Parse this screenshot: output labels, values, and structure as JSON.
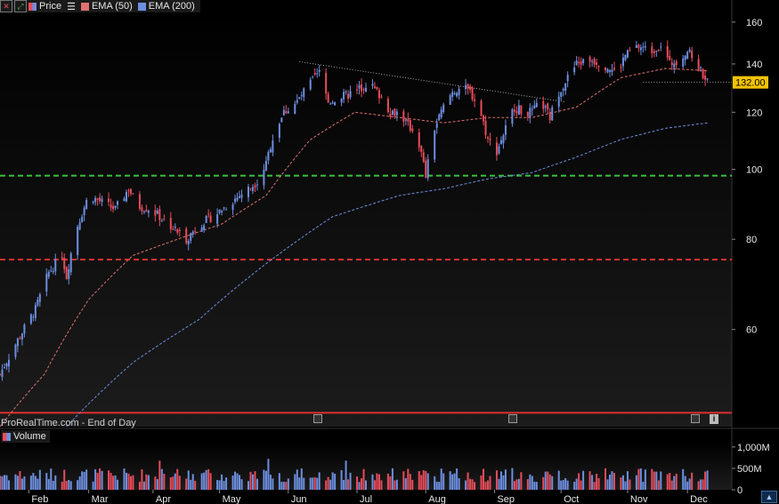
{
  "toolbar": {
    "price_label": "Price",
    "ema50_label": "EMA (50)",
    "ema200_label": "EMA (200)",
    "colors": {
      "price": "#e84c5a",
      "ema50": "#e07070",
      "ema200": "#6d8fe0"
    }
  },
  "watermark": "ProRealTime.com - End of Day",
  "volume_label": "Volume",
  "current_price_tag": "132.00",
  "chart_data": [
    {
      "type": "candlestick",
      "title": "",
      "scale": "log",
      "ylim": [
        44,
        165
      ],
      "y_ticks": [
        60,
        80,
        100,
        120,
        140,
        160
      ],
      "x_ticks": [
        "Feb",
        "Mar",
        "Apr",
        "May",
        "Jun",
        "Jul",
        "Aug",
        "Sep",
        "Oct",
        "Nov",
        "Dec"
      ],
      "x_tick_days": [
        13,
        40,
        69,
        99,
        130,
        161,
        192,
        223,
        253,
        283,
        310
      ],
      "x_range_days": [
        0,
        330
      ],
      "last_day": 319,
      "colors": {
        "up": "#6d8fe0",
        "down": "#e84c5a",
        "ema50": "#e07070",
        "ema200": "#6d8fe0"
      },
      "close_path": [
        [
          0,
          52
        ],
        [
          8,
          58
        ],
        [
          16,
          64
        ],
        [
          22,
          72
        ],
        [
          28,
          76
        ],
        [
          30,
          71
        ],
        [
          34,
          82
        ],
        [
          40,
          92
        ],
        [
          46,
          90
        ],
        [
          52,
          88
        ],
        [
          58,
          94
        ],
        [
          62,
          89
        ],
        [
          68,
          88
        ],
        [
          74,
          85
        ],
        [
          80,
          82
        ],
        [
          84,
          80
        ],
        [
          90,
          84
        ],
        [
          96,
          86
        ],
        [
          102,
          89
        ],
        [
          108,
          92
        ],
        [
          114,
          95
        ],
        [
          118,
          98
        ],
        [
          120,
          103
        ],
        [
          124,
          113
        ],
        [
          128,
          120
        ],
        [
          134,
          124
        ],
        [
          140,
          132
        ],
        [
          144,
          136
        ],
        [
          148,
          124
        ],
        [
          154,
          126
        ],
        [
          160,
          128
        ],
        [
          166,
          132
        ],
        [
          172,
          126
        ],
        [
          176,
          120
        ],
        [
          180,
          120
        ],
        [
          184,
          115
        ],
        [
          188,
          112
        ],
        [
          192,
          98
        ],
        [
          196,
          114
        ],
        [
          200,
          122
        ],
        [
          204,
          128
        ],
        [
          208,
          130
        ],
        [
          212,
          128
        ],
        [
          216,
          122
        ],
        [
          220,
          110
        ],
        [
          224,
          106
        ],
        [
          228,
          114
        ],
        [
          232,
          122
        ],
        [
          236,
          120
        ],
        [
          240,
          120
        ],
        [
          244,
          124
        ],
        [
          248,
          118
        ],
        [
          252,
          128
        ],
        [
          256,
          134
        ],
        [
          260,
          140
        ],
        [
          266,
          142
        ],
        [
          272,
          140
        ],
        [
          278,
          136
        ],
        [
          282,
          144
        ],
        [
          288,
          148
        ],
        [
          294,
          146
        ],
        [
          298,
          149
        ],
        [
          302,
          140
        ],
        [
          306,
          142
        ],
        [
          310,
          146
        ],
        [
          314,
          140
        ],
        [
          318,
          134
        ],
        [
          319,
          132
        ]
      ],
      "ema50_path": [
        [
          0,
          44
        ],
        [
          20,
          52
        ],
        [
          40,
          66
        ],
        [
          60,
          76
        ],
        [
          80,
          80
        ],
        [
          100,
          84
        ],
        [
          120,
          92
        ],
        [
          140,
          110
        ],
        [
          160,
          120
        ],
        [
          180,
          118
        ],
        [
          200,
          116
        ],
        [
          220,
          118
        ],
        [
          240,
          118
        ],
        [
          260,
          122
        ],
        [
          280,
          134
        ],
        [
          300,
          138
        ],
        [
          319,
          137
        ]
      ],
      "ema200_path": [
        [
          30,
          44
        ],
        [
          60,
          54
        ],
        [
          90,
          62
        ],
        [
          120,
          74
        ],
        [
          150,
          86
        ],
        [
          180,
          92
        ],
        [
          200,
          94
        ],
        [
          220,
          97
        ],
        [
          240,
          99
        ],
        [
          260,
          104
        ],
        [
          280,
          110
        ],
        [
          300,
          114
        ],
        [
          319,
          116
        ]
      ],
      "horizontal_levels": [
        {
          "price": 98,
          "color": "#39c23a",
          "style": "dashed"
        },
        {
          "price": 75,
          "color": "#e03030",
          "style": "dashed"
        },
        {
          "price": 46,
          "color": "#e03030",
          "style": "solid"
        },
        {
          "price": 132,
          "color": "#aaaaaa",
          "style": "dotted",
          "from_day": 290
        }
      ],
      "trendline": {
        "from": [
          135,
          141
        ],
        "to": [
          255,
          124
        ],
        "color": "#aaaaaa",
        "style": "dotted"
      }
    },
    {
      "type": "bar",
      "title": "Volume",
      "ylim": [
        0,
        1100
      ],
      "y_ticks": [
        0,
        500,
        1000
      ],
      "y_tick_labels": [
        "0",
        "500M",
        "1,000M"
      ],
      "spikes": [
        [
          40,
          1050
        ],
        [
          72,
          680
        ],
        [
          121,
          720
        ],
        [
          156,
          680
        ]
      ]
    }
  ]
}
